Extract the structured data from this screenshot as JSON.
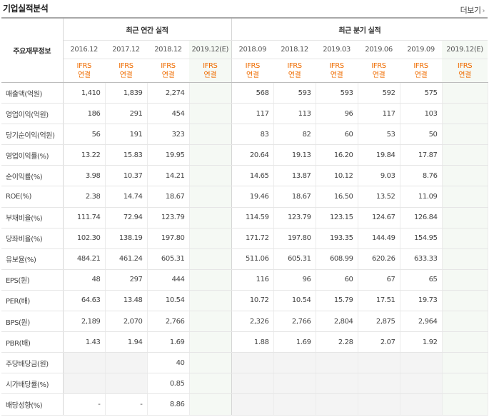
{
  "section_title": "기업실적분석",
  "more_link": "더보기",
  "header": {
    "row_label": "주요재무정보",
    "annual_group": "최근 연간 실적",
    "quarterly_group": "최근 분기 실적",
    "annual_periods": [
      "2016.12",
      "2017.12",
      "2018.12",
      "2019.12(E)"
    ],
    "quarterly_periods": [
      "2018.09",
      "2018.12",
      "2019.03",
      "2019.06",
      "2019.09",
      "2019.12(E)"
    ],
    "basis_line1": "IFRS",
    "basis_line2": "연결"
  },
  "rows": [
    {
      "label": "매출액(억원)",
      "annual": [
        "1,410",
        "1,839",
        "2,274",
        ""
      ],
      "quarterly": [
        "568",
        "593",
        "593",
        "592",
        "575",
        ""
      ]
    },
    {
      "label": "영업이익(억원)",
      "annual": [
        "186",
        "291",
        "454",
        ""
      ],
      "quarterly": [
        "117",
        "113",
        "96",
        "117",
        "103",
        ""
      ]
    },
    {
      "label": "당기순이익(억원)",
      "annual": [
        "56",
        "191",
        "323",
        ""
      ],
      "quarterly": [
        "83",
        "82",
        "60",
        "53",
        "50",
        ""
      ]
    },
    {
      "label": "영업이익률(%)",
      "annual": [
        "13.22",
        "15.83",
        "19.95",
        ""
      ],
      "quarterly": [
        "20.64",
        "19.13",
        "16.20",
        "19.84",
        "17.87",
        ""
      ]
    },
    {
      "label": "순이익률(%)",
      "annual": [
        "3.98",
        "10.37",
        "14.21",
        ""
      ],
      "quarterly": [
        "14.65",
        "13.87",
        "10.12",
        "9.03",
        "8.76",
        ""
      ]
    },
    {
      "label": "ROE(%)",
      "annual": [
        "2.38",
        "14.74",
        "18.67",
        ""
      ],
      "quarterly": [
        "19.46",
        "18.67",
        "16.50",
        "13.52",
        "11.09",
        ""
      ]
    },
    {
      "label": "부채비율(%)",
      "annual": [
        "111.74",
        "72.94",
        "123.79",
        ""
      ],
      "quarterly": [
        "114.59",
        "123.79",
        "123.15",
        "124.67",
        "126.84",
        ""
      ]
    },
    {
      "label": "당좌비율(%)",
      "annual": [
        "102.30",
        "138.19",
        "197.80",
        ""
      ],
      "quarterly": [
        "171.72",
        "197.80",
        "193.35",
        "144.49",
        "154.95",
        ""
      ]
    },
    {
      "label": "유보율(%)",
      "annual": [
        "484.21",
        "461.24",
        "605.31",
        ""
      ],
      "quarterly": [
        "511.06",
        "605.31",
        "608.99",
        "620.26",
        "633.33",
        ""
      ]
    },
    {
      "label": "EPS(원)",
      "annual": [
        "48",
        "297",
        "444",
        ""
      ],
      "quarterly": [
        "116",
        "96",
        "60",
        "67",
        "65",
        ""
      ]
    },
    {
      "label": "PER(배)",
      "annual": [
        "64.63",
        "13.48",
        "10.54",
        ""
      ],
      "quarterly": [
        "10.72",
        "10.54",
        "15.79",
        "17.51",
        "19.73",
        ""
      ]
    },
    {
      "label": "BPS(원)",
      "annual": [
        "2,189",
        "2,070",
        "2,766",
        ""
      ],
      "quarterly": [
        "2,326",
        "2,766",
        "2,804",
        "2,875",
        "2,964",
        ""
      ]
    },
    {
      "label": "PBR(배)",
      "annual": [
        "1.43",
        "1.94",
        "1.69",
        ""
      ],
      "quarterly": [
        "1.88",
        "1.69",
        "2.28",
        "2.07",
        "1.92",
        ""
      ]
    },
    {
      "label": "주당배당금(원)",
      "annual": [
        "",
        "",
        "40",
        ""
      ],
      "quarterly": [
        "",
        "",
        "",
        "",
        "",
        ""
      ]
    },
    {
      "label": "시가배당률(%)",
      "annual": [
        "",
        "",
        "0.85",
        ""
      ],
      "quarterly": [
        "",
        "",
        "",
        "",
        "",
        ""
      ]
    },
    {
      "label": "배당성향(%)",
      "annual": [
        "-",
        "-",
        "8.86",
        ""
      ],
      "quarterly": [
        "",
        "",
        "",
        "",
        "",
        ""
      ]
    }
  ]
}
